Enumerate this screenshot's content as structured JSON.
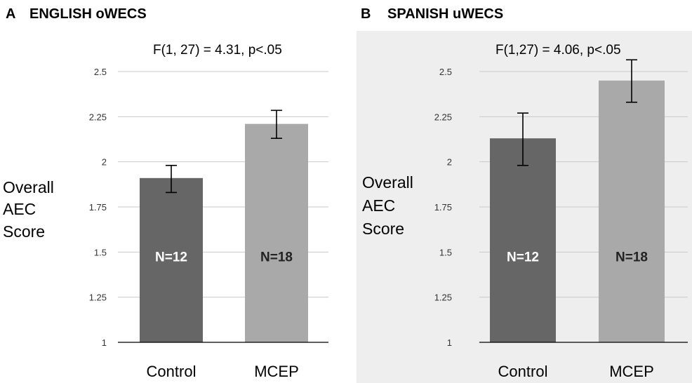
{
  "chart_data": [
    {
      "type": "bar",
      "panel_letter": "A",
      "title": "ENGLISH oWECS",
      "stat_text": "F(1, 27) = 4.31,  p<.05",
      "ylabel_lines": [
        "Overall",
        "AEC",
        "Score"
      ],
      "categories": [
        "Control",
        "MCEP"
      ],
      "values": [
        1.91,
        2.21
      ],
      "error_low": [
        1.83,
        2.13
      ],
      "error_high": [
        1.98,
        2.285
      ],
      "n_labels": [
        "N=12",
        "N=18"
      ],
      "bar_colors": [
        "#666666",
        "#a9a9a9"
      ],
      "n_label_colors": [
        "#ffffff",
        "#222222"
      ],
      "ylim": [
        1,
        2.5
      ],
      "yticks": [
        1,
        1.25,
        1.5,
        1.75,
        2,
        2.25,
        2.5
      ],
      "ytick_labels": [
        "1",
        "1.25",
        "1.5",
        "1.75",
        "2",
        "2.25",
        "2.5"
      ],
      "background": "#ffffff"
    },
    {
      "type": "bar",
      "panel_letter": "B",
      "title": "SPANISH uWECS",
      "stat_text": "F(1,27) = 4.06,  p<.05",
      "ylabel_lines": [
        "Overall",
        "AEC",
        "Score"
      ],
      "categories": [
        "Control",
        "MCEP"
      ],
      "values": [
        2.13,
        2.45
      ],
      "error_low": [
        1.98,
        2.33
      ],
      "error_high": [
        2.27,
        2.565
      ],
      "n_labels": [
        "N=12",
        "N=18"
      ],
      "bar_colors": [
        "#666666",
        "#a9a9a9"
      ],
      "n_label_colors": [
        "#ffffff",
        "#222222"
      ],
      "ylim": [
        1,
        2.5
      ],
      "yticks": [
        1,
        1.25,
        1.5,
        1.75,
        2,
        2.25,
        2.5
      ],
      "ytick_labels": [
        "1",
        "1.25",
        "1.5",
        "1.75",
        "2",
        "2.25",
        "2.5"
      ],
      "background": "#eeeeee"
    }
  ]
}
